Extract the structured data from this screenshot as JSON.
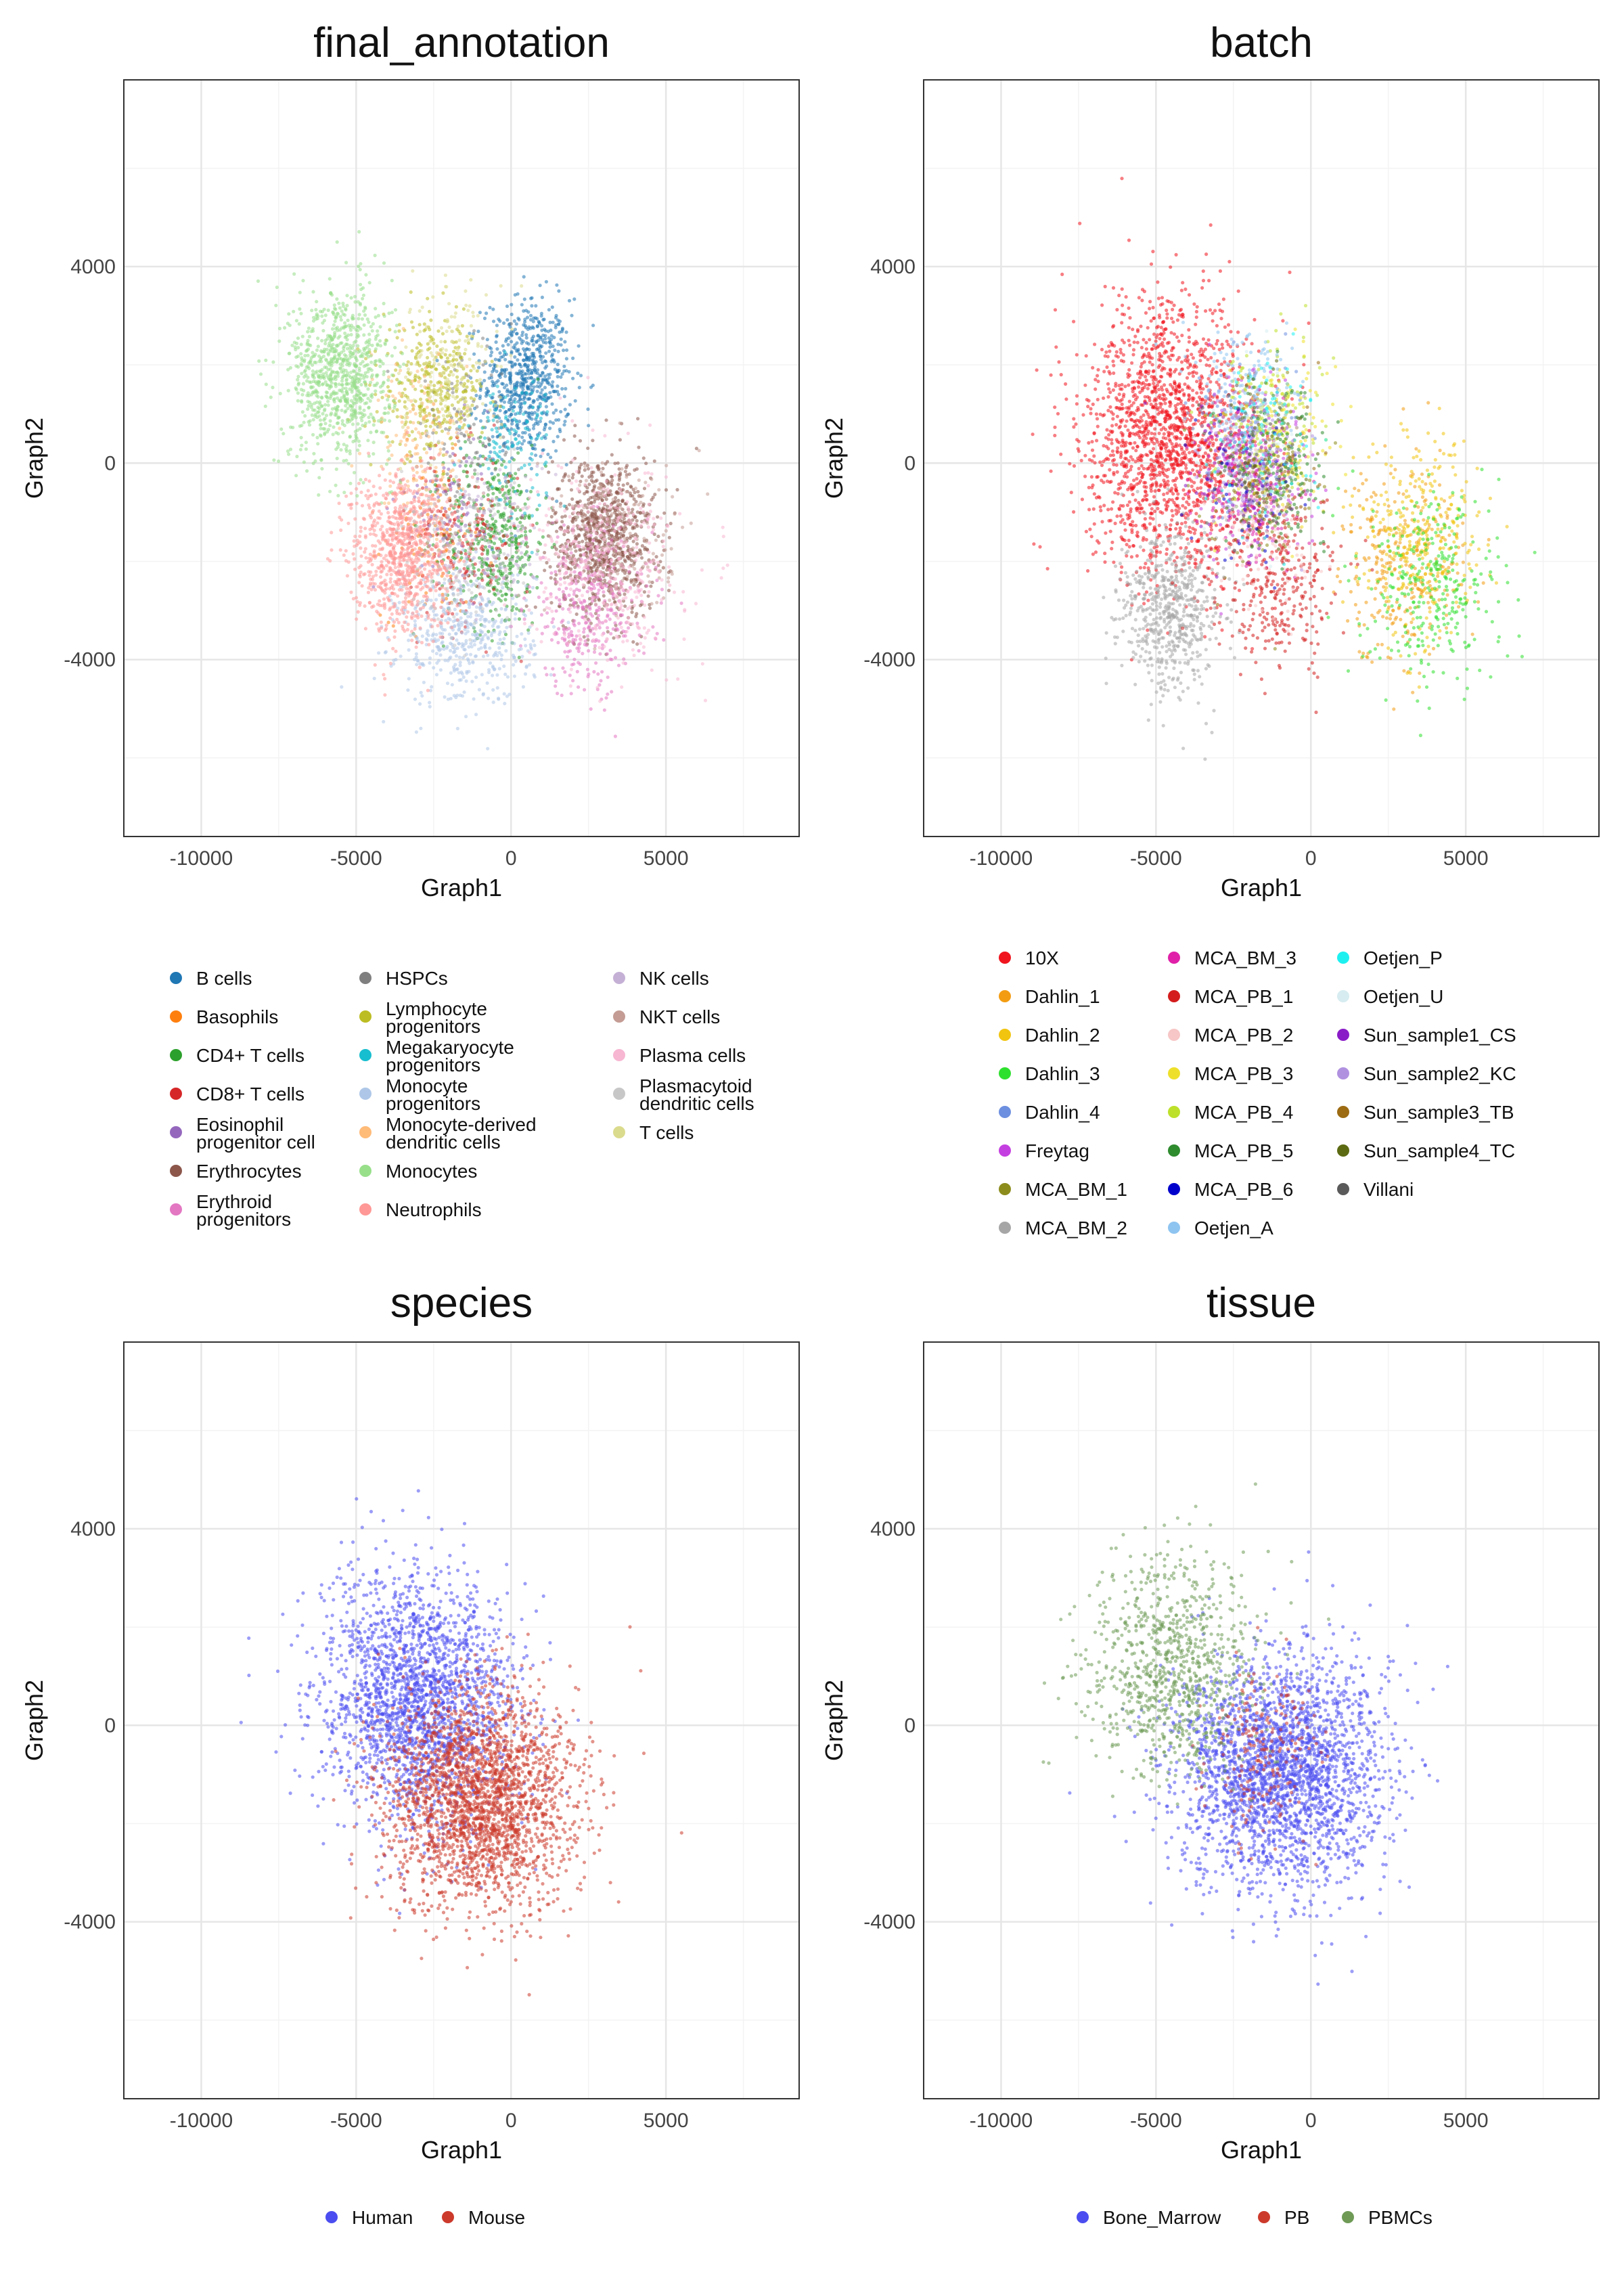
{
  "chart_data": [
    {
      "type": "scatter",
      "title": "final_annotation",
      "xlabel": "Graph1",
      "ylabel": "Graph2",
      "xlim": [
        -12500,
        9300
      ],
      "ylim": [
        -7600,
        7800
      ],
      "xticks": [
        -10000,
        -5000,
        0,
        5000
      ],
      "yticks": [
        -4000,
        0,
        4000
      ],
      "xtick_labels": [
        "-10000",
        "-5000",
        "0",
        "5000"
      ],
      "ytick_labels": [
        "-4000",
        "0",
        "4000"
      ],
      "grid": true,
      "legend_position": "bottom",
      "series": [
        {
          "name": "B cells",
          "color": "#1f77b4",
          "center": [
            500,
            1700
          ],
          "spread": [
            1300,
            1500
          ],
          "n": 700
        },
        {
          "name": "Basophils",
          "color": "#ff7f0e",
          "center": [
            -2500,
            -1500
          ],
          "spread": [
            1500,
            1500
          ],
          "n": 120
        },
        {
          "name": "CD4+ T cells",
          "color": "#2ca02c",
          "center": [
            -500,
            -1500
          ],
          "spread": [
            1500,
            1700
          ],
          "n": 450
        },
        {
          "name": "CD8+ T cells",
          "color": "#d62728",
          "center": [
            -1500,
            -1500
          ],
          "spread": [
            1600,
            1600
          ],
          "n": 200
        },
        {
          "name": "Eosinophil progenitor cell",
          "color": "#9467bd",
          "center": [
            -2000,
            -1000
          ],
          "spread": [
            1500,
            1500
          ],
          "n": 100
        },
        {
          "name": "Erythrocytes",
          "color": "#8c564b",
          "center": [
            3000,
            -1500
          ],
          "spread": [
            1500,
            1500
          ],
          "n": 900
        },
        {
          "name": "Erythroid progenitors",
          "color": "#e377c2",
          "center": [
            2500,
            -3000
          ],
          "spread": [
            1800,
            1500
          ],
          "n": 350
        },
        {
          "name": "HSPCs",
          "color": "#7f7f7f",
          "center": [
            -1500,
            500
          ],
          "spread": [
            1500,
            1500
          ],
          "n": 120
        },
        {
          "name": "Lymphocyte progenitors",
          "color": "#bcbd22",
          "center": [
            -2500,
            1500
          ],
          "spread": [
            1500,
            1200
          ],
          "n": 350
        },
        {
          "name": "Megakaryocyte progenitors",
          "color": "#17becf",
          "center": [
            0,
            500
          ],
          "spread": [
            1200,
            1200
          ],
          "n": 120
        },
        {
          "name": "Monocyte progenitors",
          "color": "#aec7e8",
          "center": [
            -1500,
            -3500
          ],
          "spread": [
            2000,
            1300
          ],
          "n": 500
        },
        {
          "name": "Monocyte-derived dendritic cells",
          "color": "#ffbb78",
          "center": [
            -3000,
            500
          ],
          "spread": [
            1500,
            1500
          ],
          "n": 150
        },
        {
          "name": "Monocytes",
          "color": "#98df8a",
          "center": [
            -5500,
            1800
          ],
          "spread": [
            1500,
            1600
          ],
          "n": 900
        },
        {
          "name": "Neutrophils",
          "color": "#ff9896",
          "center": [
            -3500,
            -1800
          ],
          "spread": [
            1500,
            1500
          ],
          "n": 900
        },
        {
          "name": "NK cells",
          "color": "#c5b0d5",
          "center": [
            -500,
            -1500
          ],
          "spread": [
            1500,
            1500
          ],
          "n": 120
        },
        {
          "name": "NKT cells",
          "color": "#c49c94",
          "center": [
            3500,
            -1500
          ],
          "spread": [
            2000,
            1500
          ],
          "n": 150
        },
        {
          "name": "Plasma cells",
          "color": "#f7b6d2",
          "center": [
            3000,
            -2000
          ],
          "spread": [
            2200,
            1800
          ],
          "n": 400
        },
        {
          "name": "Plasmacytoid dendritic cells",
          "color": "#c7c7c7",
          "center": [
            -1500,
            -2000
          ],
          "spread": [
            1800,
            1500
          ],
          "n": 150
        },
        {
          "name": "T cells",
          "color": "#dbdb8d",
          "center": [
            -2000,
            2000
          ],
          "spread": [
            1500,
            1500
          ],
          "n": 150
        }
      ]
    },
    {
      "type": "scatter",
      "title": "batch",
      "xlabel": "Graph1",
      "ylabel": "Graph2",
      "xlim": [
        -12500,
        9300
      ],
      "ylim": [
        -7600,
        7800
      ],
      "xticks": [
        -10000,
        -5000,
        0,
        5000
      ],
      "yticks": [
        -4000,
        0,
        4000
      ],
      "xtick_labels": [
        "-10000",
        "-5000",
        "0",
        "5000"
      ],
      "ytick_labels": [
        "-4000",
        "0",
        "4000"
      ],
      "grid": true,
      "legend_position": "bottom",
      "series": [
        {
          "name": "10X",
          "color": "#f0141e",
          "center": [
            -4500,
            500
          ],
          "spread": [
            2500,
            2500
          ],
          "n": 1800
        },
        {
          "name": "Dahlin_1",
          "color": "#f39c12",
          "center": [
            3000,
            -2000
          ],
          "spread": [
            1800,
            1800
          ],
          "n": 300
        },
        {
          "name": "Dahlin_2",
          "color": "#f1c40f",
          "center": [
            3500,
            -1500
          ],
          "spread": [
            1800,
            1800
          ],
          "n": 300
        },
        {
          "name": "Dahlin_3",
          "color": "#2ee02e",
          "center": [
            4000,
            -2500
          ],
          "spread": [
            2000,
            1800
          ],
          "n": 300
        },
        {
          "name": "Dahlin_4",
          "color": "#6d8fe0",
          "center": [
            -2000,
            500
          ],
          "spread": [
            1500,
            1500
          ],
          "n": 120
        },
        {
          "name": "Freytag",
          "color": "#c43fe0",
          "center": [
            -2000,
            0
          ],
          "spread": [
            1500,
            1500
          ],
          "n": 200
        },
        {
          "name": "MCA_BM_1",
          "color": "#8c8c1c",
          "center": [
            -1500,
            -500
          ],
          "spread": [
            1500,
            1500
          ],
          "n": 120
        },
        {
          "name": "MCA_BM_2",
          "color": "#a6a6a6",
          "center": [
            -4500,
            -3000
          ],
          "spread": [
            1500,
            1500
          ],
          "n": 600
        },
        {
          "name": "MCA_BM_3",
          "color": "#e020a8",
          "center": [
            -2000,
            -500
          ],
          "spread": [
            1500,
            1500
          ],
          "n": 150
        },
        {
          "name": "MCA_PB_1",
          "color": "#d41c1c",
          "center": [
            -1000,
            -2500
          ],
          "spread": [
            1800,
            1500
          ],
          "n": 300
        },
        {
          "name": "MCA_PB_2",
          "color": "#f7c6c6",
          "center": [
            -1500,
            -1500
          ],
          "spread": [
            1500,
            1500
          ],
          "n": 120
        },
        {
          "name": "MCA_PB_3",
          "color": "#eee02a",
          "center": [
            -1000,
            500
          ],
          "spread": [
            1500,
            1500
          ],
          "n": 150
        },
        {
          "name": "MCA_PB_4",
          "color": "#bde02a",
          "center": [
            -1500,
            1000
          ],
          "spread": [
            1500,
            1500
          ],
          "n": 150
        },
        {
          "name": "MCA_PB_5",
          "color": "#2e8b2e",
          "center": [
            -1000,
            0
          ],
          "spread": [
            1500,
            1500
          ],
          "n": 150
        },
        {
          "name": "MCA_PB_6",
          "color": "#0000cc",
          "center": [
            -2000,
            -500
          ],
          "spread": [
            1500,
            1500
          ],
          "n": 60
        },
        {
          "name": "Oetjen_A",
          "color": "#8ec4f0",
          "center": [
            -2000,
            1500
          ],
          "spread": [
            1500,
            1200
          ],
          "n": 150
        },
        {
          "name": "Oetjen_P",
          "color": "#1ef0f0",
          "center": [
            -1500,
            500
          ],
          "spread": [
            1500,
            1500
          ],
          "n": 100
        },
        {
          "name": "Oetjen_U",
          "color": "#d6ecf0",
          "center": [
            -2000,
            0
          ],
          "spread": [
            1500,
            1500
          ],
          "n": 100
        },
        {
          "name": "Sun_sample1_CS",
          "color": "#8a1cc8",
          "center": [
            -2500,
            -500
          ],
          "spread": [
            1500,
            1500
          ],
          "n": 60
        },
        {
          "name": "Sun_sample2_KC",
          "color": "#b091e0",
          "center": [
            -2000,
            0
          ],
          "spread": [
            1500,
            1500
          ],
          "n": 100
        },
        {
          "name": "Sun_sample3_TB",
          "color": "#9c6b12",
          "center": [
            -1500,
            -500
          ],
          "spread": [
            1500,
            1500
          ],
          "n": 60
        },
        {
          "name": "Sun_sample4_TC",
          "color": "#5c6a12",
          "center": [
            -1500,
            0
          ],
          "spread": [
            1500,
            1500
          ],
          "n": 60
        },
        {
          "name": "Villani",
          "color": "#5a5a5a",
          "center": [
            -2000,
            0
          ],
          "spread": [
            1500,
            1500
          ],
          "n": 60
        }
      ]
    },
    {
      "type": "scatter",
      "title": "species",
      "xlabel": "Graph1",
      "ylabel": "Graph2",
      "xlim": [
        -12500,
        9300
      ],
      "ylim": [
        -7600,
        7800
      ],
      "xticks": [
        -10000,
        -5000,
        0,
        5000
      ],
      "yticks": [
        -4000,
        0,
        4000
      ],
      "xtick_labels": [
        "-10000",
        "-5000",
        "0",
        "5000"
      ],
      "ytick_labels": [
        "-4000",
        "0",
        "4000"
      ],
      "grid": true,
      "legend_position": "bottom",
      "series": [
        {
          "name": "Human",
          "color": "#4b4df0",
          "center": [
            -3000,
            500
          ],
          "spread": [
            2800,
            2300
          ],
          "n": 2200
        },
        {
          "name": "Mouse",
          "color": "#cc3a2c",
          "center": [
            -1000,
            -1500
          ],
          "spread": [
            2800,
            2000
          ],
          "n": 2400
        }
      ]
    },
    {
      "type": "scatter",
      "title": "tissue",
      "xlabel": "Graph1",
      "ylabel": "Graph2",
      "xlim": [
        -12500,
        9300
      ],
      "ylim": [
        -7600,
        7800
      ],
      "xticks": [
        -10000,
        -5000,
        0,
        5000
      ],
      "yticks": [
        -4000,
        0,
        4000
      ],
      "xtick_labels": [
        "-10000",
        "-5000",
        "0",
        "5000"
      ],
      "ytick_labels": [
        "-4000",
        "0",
        "4000"
      ],
      "grid": true,
      "legend_position": "bottom",
      "series": [
        {
          "name": "Bone_Marrow",
          "color": "#4b4df0",
          "center": [
            -1000,
            -1000
          ],
          "spread": [
            3000,
            2200
          ],
          "n": 2600
        },
        {
          "name": "PB",
          "color": "#cc3a2c",
          "center": [
            -1500,
            -500
          ],
          "spread": [
            1500,
            1500
          ],
          "n": 200
        },
        {
          "name": "PBMCs",
          "color": "#6e9a56",
          "center": [
            -4500,
            1200
          ],
          "spread": [
            2500,
            2000
          ],
          "n": 900
        }
      ]
    }
  ]
}
